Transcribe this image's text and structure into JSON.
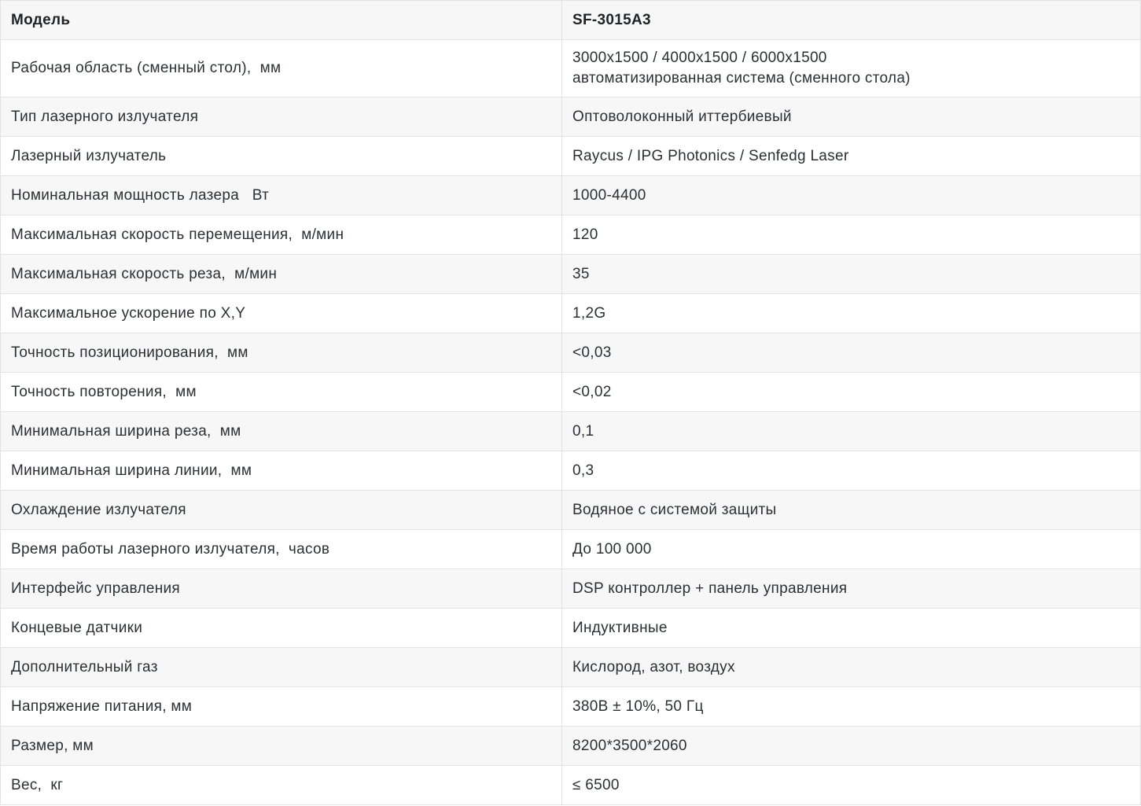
{
  "theme": {
    "stripe": "#f7f7f8",
    "border": "#e2e2e4",
    "text": "#2c2f33",
    "header_text": "#202326"
  },
  "table": {
    "header": {
      "label": "Модель",
      "value": "SF-3015A3"
    },
    "rows": [
      {
        "label": "Рабочая область (сменный стол),  мм",
        "value": "3000х1500 / 4000х1500 / 6000х1500\nавтоматизированная система (сменного стола)"
      },
      {
        "label": "Тип лазерного излучателя",
        "value": "Оптоволоконный иттербиевый"
      },
      {
        "label": "Лазерный излучатель",
        "value": "Raycus / IPG Photonics / Senfedg Laser"
      },
      {
        "label": "Номинальная мощность лазера   Вт",
        "value": "1000-4400"
      },
      {
        "label": "Максимальная скорость перемещения,  м/мин",
        "value": "120"
      },
      {
        "label": "Максимальная скорость реза,  м/мин",
        "value": "35"
      },
      {
        "label": "Максимальное ускорение по X,Y",
        "value": "1,2G"
      },
      {
        "label": "Точность позиционирования,  мм",
        "value": "<0,03"
      },
      {
        "label": "Точность повторения,  мм",
        "value": "<0,02"
      },
      {
        "label": "Минимальная ширина реза,  мм",
        "value": "0,1"
      },
      {
        "label": "Минимальная ширина линии,  мм",
        "value": "0,3"
      },
      {
        "label": "Охлаждение излучателя",
        "value": "Водяное с системой защиты"
      },
      {
        "label": "Время работы лазерного излучателя,  часов",
        "value": "До 100 000"
      },
      {
        "label": "Интерфейс управления",
        "value": "DSP контроллер + панель управления"
      },
      {
        "label": "Концевые датчики",
        "value": "Индуктивные"
      },
      {
        "label": "Дополнительный газ",
        "value": "Кислород, азот, воздух"
      },
      {
        "label": "Напряжение питания, мм",
        "value": "380В ± 10%, 50 Гц"
      },
      {
        "label": "Размер, мм",
        "value": "8200*3500*2060"
      },
      {
        "label": "Вес,  кг",
        "value": "≤ 6500"
      }
    ]
  }
}
